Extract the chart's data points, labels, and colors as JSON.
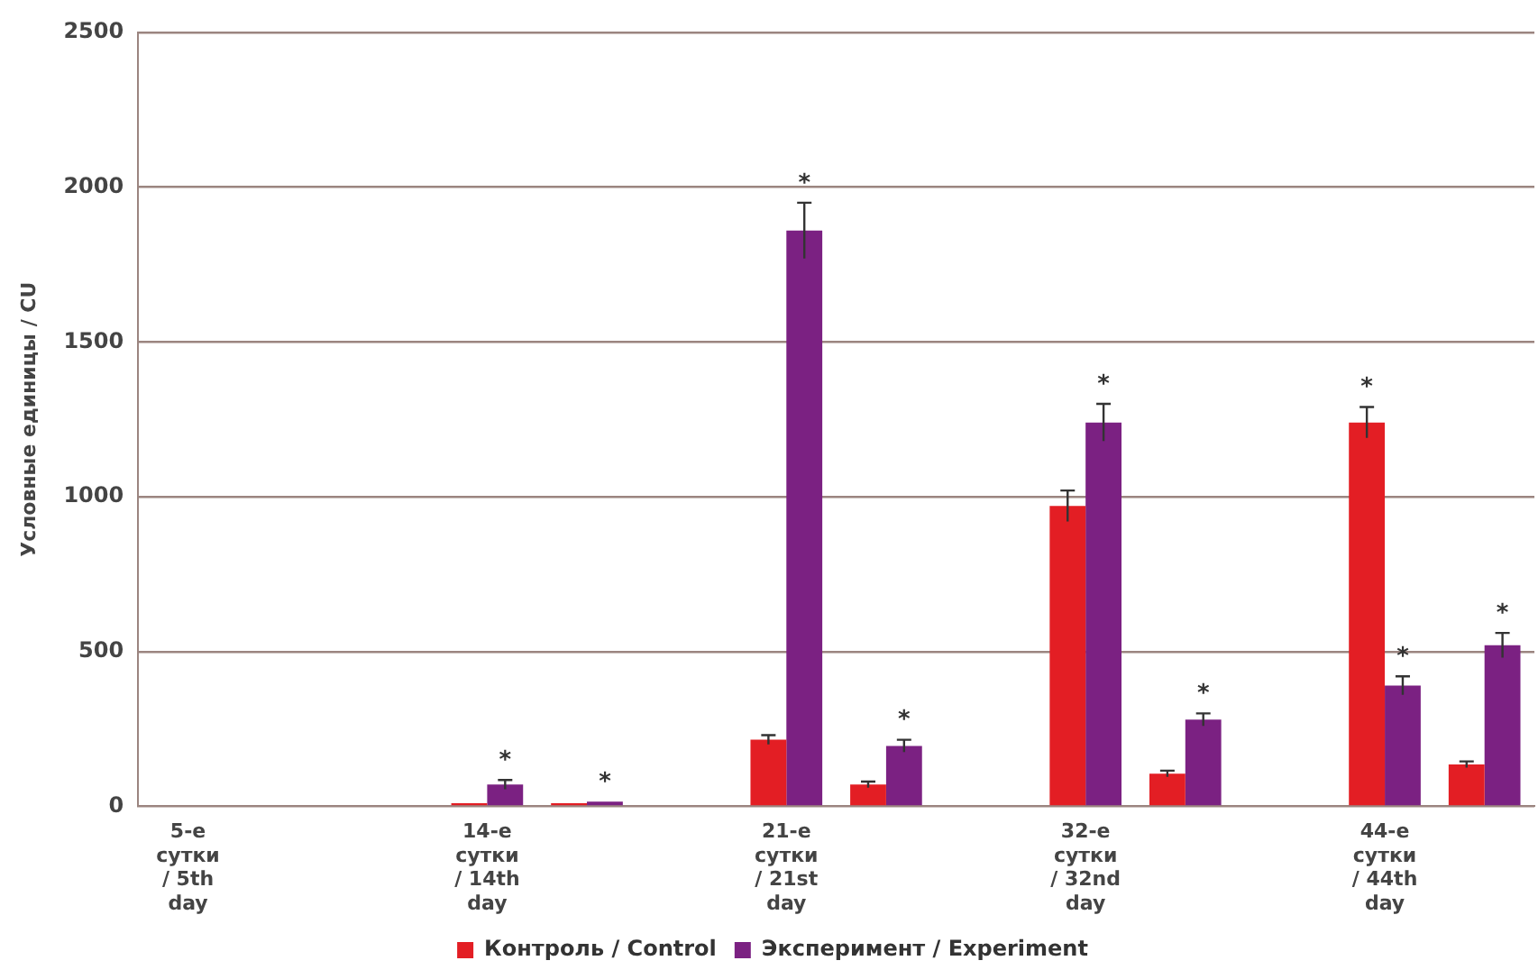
{
  "chart_data": {
    "type": "bar",
    "ylabel": "Условные единицы / CU",
    "categories": [
      "5-е сутки / 5th day",
      null,
      null,
      "14-е сутки / 14th day",
      null,
      null,
      "21-е сутки / 21st day",
      null,
      null,
      "32-е сутки / 32nd day",
      null,
      null,
      "44-е сутки / 44th day",
      null
    ],
    "series": [
      {
        "name": "Контроль / Control",
        "color": "#e31e24",
        "values": [
          0,
          0,
          null,
          10,
          10,
          null,
          215,
          70,
          null,
          970,
          105,
          null,
          1240,
          135
        ],
        "errors": [
          null,
          null,
          null,
          null,
          null,
          null,
          15,
          10,
          null,
          50,
          10,
          null,
          50,
          10
        ],
        "value_labels": [
          null,
          null,
          null,
          null,
          null,
          null,
          null,
          null,
          null,
          null,
          null,
          null,
          "*",
          null
        ]
      },
      {
        "name": "Эксперимент / Experiment",
        "color": "#7b2182",
        "values": [
          0,
          0,
          null,
          70,
          15,
          null,
          1860,
          195,
          null,
          1240,
          280,
          null,
          390,
          520
        ],
        "errors": [
          null,
          null,
          null,
          15,
          null,
          null,
          90,
          20,
          null,
          60,
          20,
          null,
          30,
          40
        ],
        "value_labels": [
          null,
          null,
          null,
          "*",
          "*",
          null,
          "*",
          "*",
          null,
          "*",
          "*",
          null,
          "*",
          "*"
        ]
      }
    ],
    "ylim": [
      0,
      2500
    ],
    "yticks": [
      0,
      500,
      1000,
      1500,
      2000,
      2500
    ],
    "grid": "y",
    "legend": "bottom"
  }
}
